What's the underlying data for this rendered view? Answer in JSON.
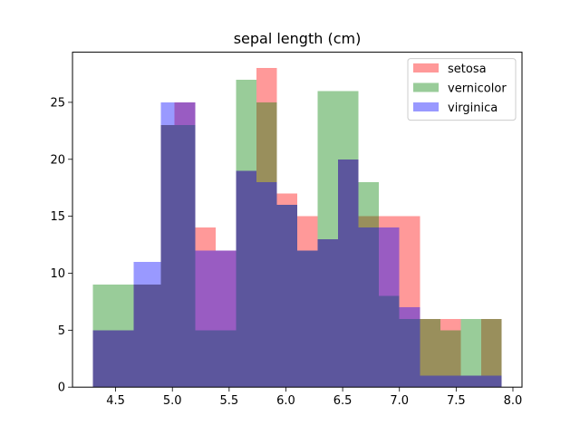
{
  "chart_data": {
    "type": "bar",
    "title": "sepal length (cm)",
    "xlabel": "",
    "ylabel": "",
    "xlim": [
      4.12,
      8.08
    ],
    "ylim": [
      0,
      29.4
    ],
    "xticks": [
      "4.5",
      "5.0",
      "5.5",
      "6.0",
      "6.5",
      "7.0",
      "7.5",
      "8.0"
    ],
    "yticks": [
      "0",
      "5",
      "10",
      "15",
      "20",
      "25"
    ],
    "grid": false,
    "legend_position": "top-right",
    "bin_edges": [
      4.3,
      4.48,
      4.66,
      4.84,
      5.02,
      5.2,
      5.38,
      5.56,
      5.74,
      5.92,
      6.1,
      6.28,
      6.46,
      6.64,
      6.82,
      7.0,
      7.18,
      7.36,
      7.54,
      7.72,
      7.9
    ],
    "series": [
      {
        "name": "setosa",
        "color": "#ff0000",
        "alpha": 0.4,
        "edges": [
          4.3,
          4.66,
          4.9,
          5.02,
          5.2,
          5.38,
          5.56,
          5.74,
          5.92,
          6.1,
          6.28,
          6.46,
          6.64,
          6.82,
          7.0,
          7.18,
          7.36,
          7.54,
          7.72,
          7.9
        ],
        "values": [
          5,
          9,
          23,
          25,
          14,
          12,
          19,
          28,
          17,
          15,
          13,
          20,
          15,
          15,
          15,
          6,
          6,
          1,
          6
        ]
      },
      {
        "name": "vernicolor",
        "color": "#008000",
        "alpha": 0.4,
        "edges": [
          4.3,
          4.66,
          4.9,
          5.02,
          5.2,
          5.38,
          5.56,
          5.74,
          5.92,
          6.1,
          6.28,
          6.46,
          6.64,
          6.82,
          7.0,
          7.18,
          7.36,
          7.54,
          7.72,
          7.9
        ],
        "values": [
          9,
          9,
          23,
          23,
          5,
          5,
          27,
          25,
          16,
          12,
          26,
          26,
          18,
          8,
          6,
          6,
          5,
          6,
          6
        ]
      },
      {
        "name": "virginica",
        "color": "#0000ff",
        "alpha": 0.4,
        "edges": [
          4.3,
          4.56,
          4.66,
          4.84,
          4.9,
          5.02,
          5.2,
          5.38,
          5.56,
          5.74,
          5.92,
          6.1,
          6.28,
          6.46,
          6.64,
          6.82,
          7.0,
          7.18,
          7.36,
          7.54,
          7.72,
          7.9
        ],
        "values": [
          5,
          5,
          11,
          11,
          25,
          25,
          12,
          12,
          19,
          18,
          16,
          12,
          13,
          20,
          14,
          14,
          7,
          1,
          1,
          1,
          1
        ]
      }
    ]
  }
}
